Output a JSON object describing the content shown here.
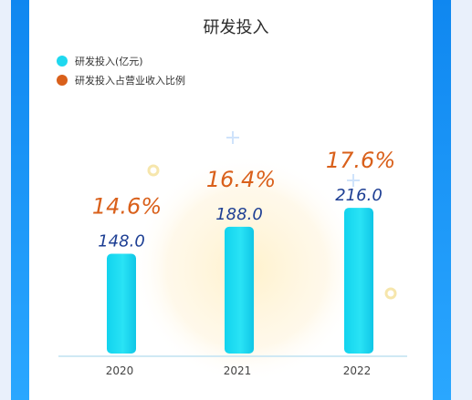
{
  "chart_data": {
    "type": "bar",
    "title": "研发投入",
    "categories": [
      "2020",
      "2021",
      "2022"
    ],
    "series": [
      {
        "name": "研发投入(亿元)",
        "values": [
          148.0,
          188.0,
          216.0
        ],
        "color": "#1fd8ef"
      },
      {
        "name": "研发投入占营业收入比例",
        "values": [
          "14.6%",
          "16.4%",
          "17.6%"
        ],
        "color": "#d9601b"
      }
    ],
    "value_labels": [
      "148.0",
      "188.0",
      "216.0"
    ],
    "percent_labels": [
      "14.6%",
      "16.4%",
      "17.6%"
    ],
    "grid": false,
    "legend": "top-left"
  }
}
